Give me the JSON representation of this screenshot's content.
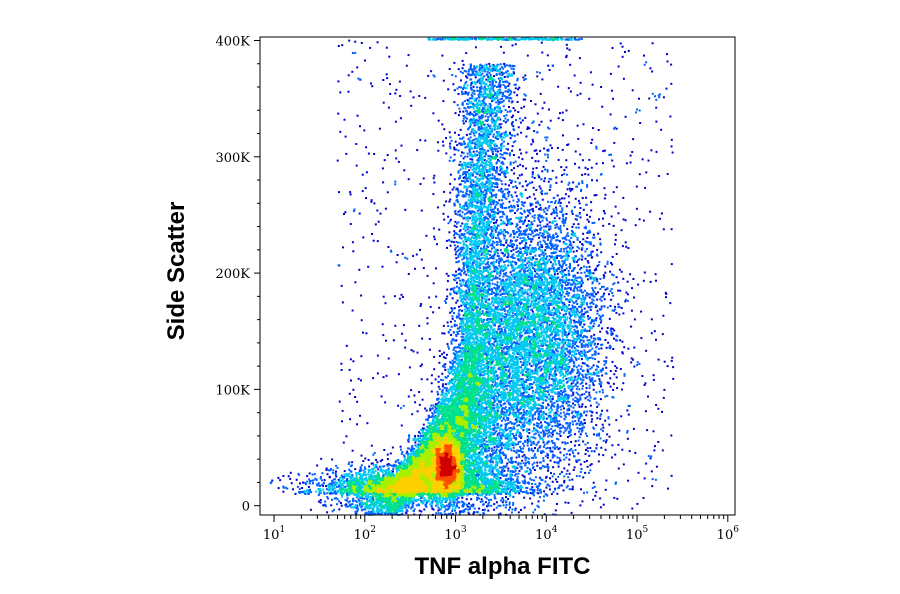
{
  "chart_data": {
    "type": "scatter",
    "subtype": "flow cytometry density dot plot",
    "title": "",
    "xlabel": "TNF alpha FITC",
    "ylabel": "Side Scatter",
    "x_scale": "log",
    "xlim": [
      7,
      1200000
    ],
    "ylim": [
      -8000,
      403000
    ],
    "x_ticks": [
      {
        "value": 10,
        "base": "10",
        "exp": "1"
      },
      {
        "value": 100,
        "base": "10",
        "exp": "2"
      },
      {
        "value": 1000,
        "base": "10",
        "exp": "3"
      },
      {
        "value": 10000,
        "base": "10",
        "exp": "4"
      },
      {
        "value": 100000,
        "base": "10",
        "exp": "5"
      },
      {
        "value": 1000000,
        "base": "10",
        "exp": "6"
      }
    ],
    "y_ticks": [
      {
        "value": 0,
        "label": "0"
      },
      {
        "value": 100000,
        "label": "100K"
      },
      {
        "value": 200000,
        "label": "200K"
      },
      {
        "value": 300000,
        "label": "300K"
      },
      {
        "value": 400000,
        "label": "400K"
      }
    ],
    "colormap": [
      "#0000cc",
      "#0060ff",
      "#00c8f0",
      "#00e08a",
      "#a8f000",
      "#ffd000",
      "#ff5000",
      "#d00000"
    ],
    "grid": false,
    "legend": "none",
    "populations": [
      {
        "center_x": 800,
        "center_y": 35000,
        "note": "dense core (red)"
      },
      {
        "center_x": 2000,
        "center_y": 250000,
        "note": "upward spike to ~370K"
      },
      {
        "center_x": 12000,
        "center_y": 150000,
        "note": "broad diffuse tail"
      }
    ]
  }
}
